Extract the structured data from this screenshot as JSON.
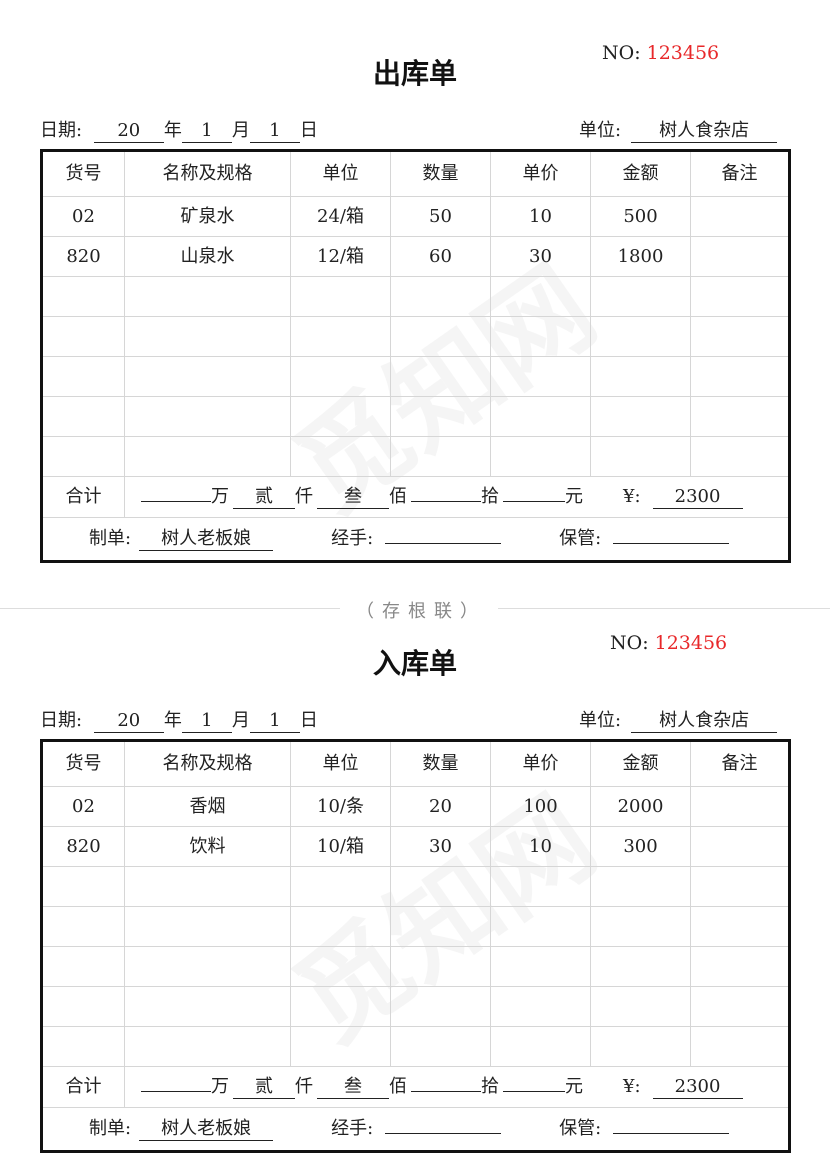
{
  "separator": "（存根联）",
  "watermark": "觅知网",
  "forms": [
    {
      "title": "出库单",
      "no_label": "NO:",
      "no_value": "123456",
      "date_label": "日期:",
      "year": "20",
      "year_label": "年",
      "month": "1",
      "month_label": "月",
      "day": "1",
      "day_label": "日",
      "unit_label": "单位:",
      "unit_value": "树人食杂店",
      "headers": [
        "货号",
        "名称及规格",
        "单位",
        "数量",
        "单价",
        "金额",
        "备注"
      ],
      "rows": [
        [
          "02",
          "矿泉水",
          "24/箱",
          "50",
          "10",
          "500",
          ""
        ],
        [
          "820",
          "山泉水",
          "12/箱",
          "60",
          "30",
          "1800",
          ""
        ],
        [
          "",
          "",
          "",
          "",
          "",
          "",
          ""
        ],
        [
          "",
          "",
          "",
          "",
          "",
          "",
          ""
        ],
        [
          "",
          "",
          "",
          "",
          "",
          "",
          ""
        ],
        [
          "",
          "",
          "",
          "",
          "",
          "",
          ""
        ],
        [
          "",
          "",
          "",
          "",
          "",
          "",
          ""
        ]
      ],
      "total_label": "合计",
      "total_units": [
        {
          "v": "",
          "u": "万"
        },
        {
          "v": "贰",
          "u": "仟"
        },
        {
          "v": "叁",
          "u": "佰"
        },
        {
          "v": "",
          "u": "拾"
        },
        {
          "v": "",
          "u": "元"
        }
      ],
      "yen_label": "¥:",
      "total_value": "2300",
      "maker_label": "制单:",
      "maker": "树人老板娘",
      "handler_label": "经手:",
      "handler": "",
      "keeper_label": "保管:",
      "keeper": ""
    },
    {
      "title": "入库单",
      "no_label": "NO:",
      "no_value": "123456",
      "date_label": "日期:",
      "year": "20",
      "year_label": "年",
      "month": "1",
      "month_label": "月",
      "day": "1",
      "day_label": "日",
      "unit_label": "单位:",
      "unit_value": "树人食杂店",
      "headers": [
        "货号",
        "名称及规格",
        "单位",
        "数量",
        "单价",
        "金额",
        "备注"
      ],
      "rows": [
        [
          "02",
          "香烟",
          "10/条",
          "20",
          "100",
          "2000",
          ""
        ],
        [
          "820",
          "饮料",
          "10/箱",
          "30",
          "10",
          "300",
          ""
        ],
        [
          "",
          "",
          "",
          "",
          "",
          "",
          ""
        ],
        [
          "",
          "",
          "",
          "",
          "",
          "",
          ""
        ],
        [
          "",
          "",
          "",
          "",
          "",
          "",
          ""
        ],
        [
          "",
          "",
          "",
          "",
          "",
          "",
          ""
        ],
        [
          "",
          "",
          "",
          "",
          "",
          "",
          ""
        ]
      ],
      "total_label": "合计",
      "total_units": [
        {
          "v": "",
          "u": "万"
        },
        {
          "v": "贰",
          "u": "仟"
        },
        {
          "v": "叁",
          "u": "佰"
        },
        {
          "v": "",
          "u": "拾"
        },
        {
          "v": "",
          "u": "元"
        }
      ],
      "yen_label": "¥:",
      "total_value": "2300",
      "maker_label": "制单:",
      "maker": "树人老板娘",
      "handler_label": "经手:",
      "handler": "",
      "keeper_label": "保管:",
      "keeper": ""
    }
  ]
}
